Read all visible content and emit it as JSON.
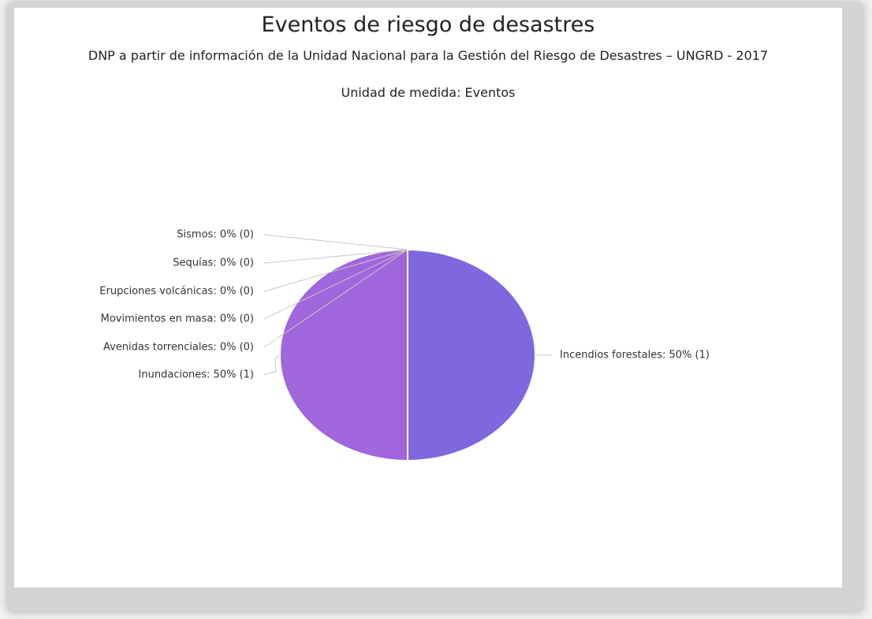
{
  "chart_data": {
    "type": "pie",
    "title": "Eventos de riesgo de desastres",
    "subtitle": "DNP a partir de información de la Unidad Nacional para la Gestión del Riesgo de Desastres – UNGRD - 2017",
    "subtitle2": "Unidad de medida: Eventos",
    "values": [
      50,
      50,
      0,
      0,
      0,
      0,
      0
    ],
    "value_labels": [
      "Incendios forestales: 50% (1)",
      "Inundaciones: 50% (1)",
      "Avenidas torrenciales: 0% (0)",
      "Movimientos en masa: 0% (0)",
      "Erupciones volcánicas: 0% (0)",
      "Sequías: 0% (0)",
      "Sismos: 0% (0)"
    ],
    "colors": [
      "#7f68de",
      "#a066db",
      "#9a7ad8",
      "#9a7ad8",
      "#9a7ad8",
      "#9a7ad8",
      "#9a7ad8"
    ]
  }
}
